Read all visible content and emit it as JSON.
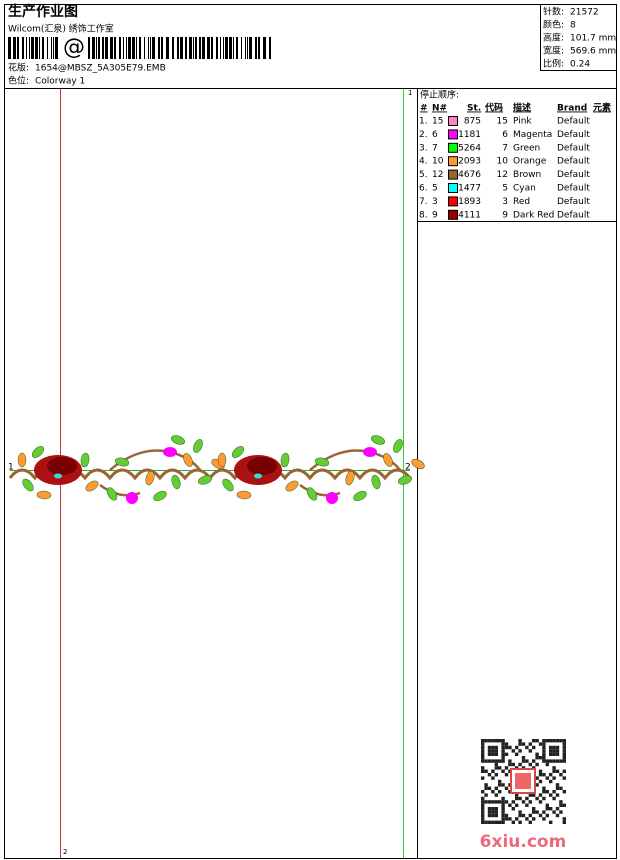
{
  "header": {
    "title": "生产作业图",
    "studio": "Wilcom(汇泉) 绣饰工作室",
    "barcode_text": "@",
    "design_label": "花版:",
    "design_file": "1654@MBSZ_5A305E79.EMB",
    "colorway_label": "色位:",
    "colorway": "Colorway 1"
  },
  "info": [
    {
      "label": "针数:",
      "value": "21572"
    },
    {
      "label": "颜色:",
      "value": "8"
    },
    {
      "label": "高度:",
      "value": "101.7 mm"
    },
    {
      "label": "宽度:",
      "value": "569.6 mm"
    },
    {
      "label": "比例:",
      "value": "0.24"
    }
  ],
  "stop_sequence": {
    "title": "停止顺序:",
    "columns": [
      "#",
      "N#",
      "St.",
      "代码",
      "描述",
      "Brand",
      "元素"
    ],
    "rows": [
      {
        "seq": "1.",
        "needle": "15",
        "color": "#ff80c0",
        "stitches": "875",
        "code": "15",
        "description": "Pink",
        "brand": "Default"
      },
      {
        "seq": "2.",
        "needle": "6",
        "color": "#ff00ff",
        "stitches": "1181",
        "code": "6",
        "description": "Magenta",
        "brand": "Default"
      },
      {
        "seq": "3.",
        "needle": "7",
        "color": "#00ff00",
        "stitches": "5264",
        "code": "7",
        "description": "Green",
        "brand": "Default"
      },
      {
        "seq": "4.",
        "needle": "10",
        "color": "#ff9933",
        "stitches": "2093",
        "code": "10",
        "description": "Orange",
        "brand": "Default"
      },
      {
        "seq": "5.",
        "needle": "12",
        "color": "#996633",
        "stitches": "4676",
        "code": "12",
        "description": "Brown",
        "brand": "Default"
      },
      {
        "seq": "6.",
        "needle": "5",
        "color": "#00ffff",
        "stitches": "1477",
        "code": "5",
        "description": "Cyan",
        "brand": "Default"
      },
      {
        "seq": "7.",
        "needle": "3",
        "color": "#ff0000",
        "stitches": "1893",
        "code": "3",
        "description": "Red",
        "brand": "Default"
      },
      {
        "seq": "8.",
        "needle": "9",
        "color": "#990000",
        "stitches": "4111",
        "code": "9",
        "description": "Dark Red",
        "brand": "Default"
      }
    ]
  },
  "design_markers": {
    "start": "1",
    "end": "2",
    "top_right": "1",
    "bottom_left": "2"
  },
  "watermark": "6xiu.com"
}
